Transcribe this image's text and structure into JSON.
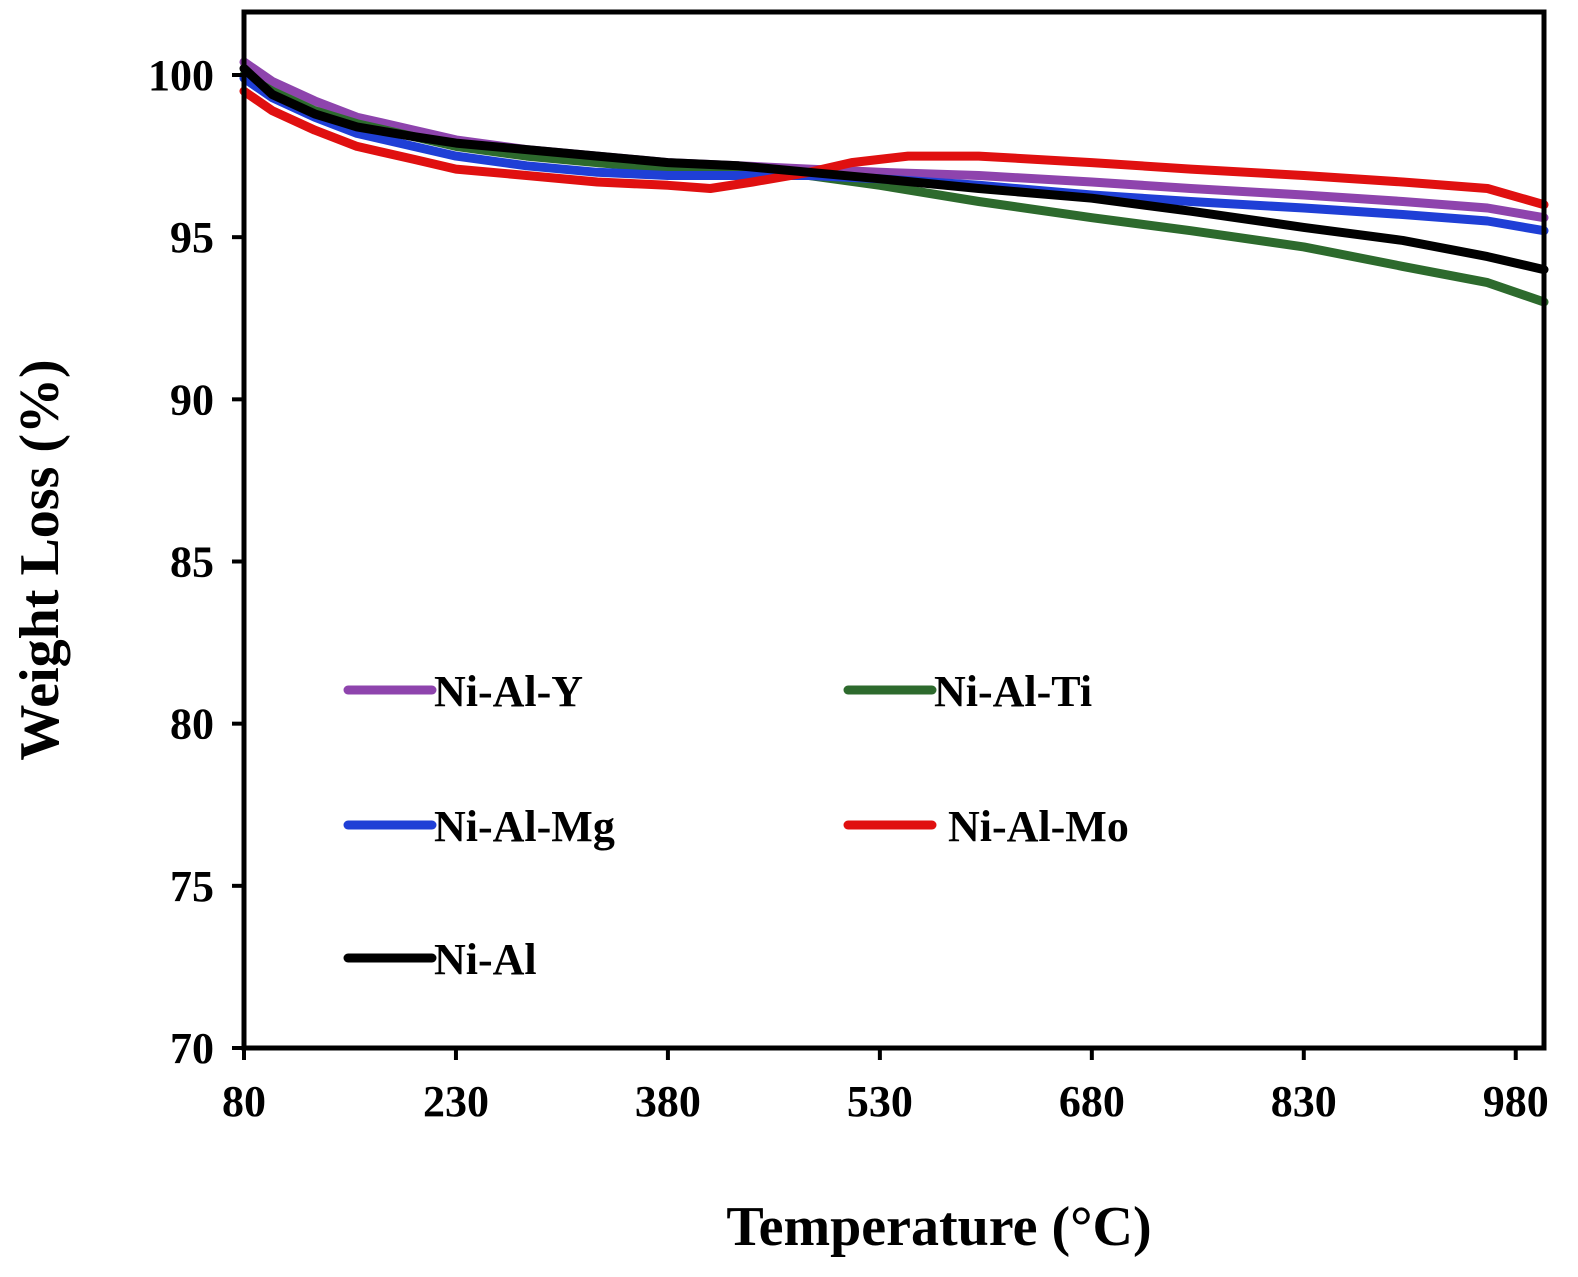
{
  "chart_data": {
    "type": "line",
    "title": "",
    "xlabel": "Temperature (°C)",
    "ylabel": "Weight Loss (%)",
    "xlim": [
      80,
      1000
    ],
    "ylim": [
      70,
      102
    ],
    "xticks": [
      80,
      230,
      380,
      530,
      680,
      830,
      980
    ],
    "yticks": [
      70,
      75,
      80,
      85,
      90,
      95,
      100
    ],
    "grid": false,
    "legend_position": "lower-left inside",
    "series": [
      {
        "name": "Ni-Al-Y",
        "color": "#8e44ad",
        "x": [
          80,
          100,
          130,
          160,
          200,
          230,
          280,
          330,
          380,
          430,
          480,
          530,
          600,
          680,
          750,
          830,
          900,
          960,
          1000
        ],
        "y": [
          100.4,
          99.8,
          99.2,
          98.7,
          98.3,
          98.0,
          97.7,
          97.5,
          97.3,
          97.2,
          97.1,
          97.0,
          96.9,
          96.7,
          96.5,
          96.3,
          96.1,
          95.9,
          95.6
        ]
      },
      {
        "name": "Ni-Al-Ti",
        "color": "#2d6a2d",
        "x": [
          80,
          100,
          130,
          160,
          200,
          230,
          280,
          330,
          380,
          430,
          480,
          530,
          600,
          680,
          750,
          830,
          900,
          960,
          1000
        ],
        "y": [
          100.0,
          99.5,
          98.9,
          98.5,
          98.1,
          97.8,
          97.5,
          97.3,
          97.1,
          97.0,
          96.9,
          96.6,
          96.1,
          95.6,
          95.2,
          94.7,
          94.1,
          93.6,
          93.0
        ]
      },
      {
        "name": "Ni-Al-Mg",
        "color": "#1f3fd6",
        "x": [
          80,
          100,
          130,
          160,
          200,
          230,
          280,
          330,
          380,
          430,
          480,
          530,
          600,
          680,
          750,
          830,
          900,
          960,
          1000
        ],
        "y": [
          99.9,
          99.3,
          98.7,
          98.2,
          97.8,
          97.5,
          97.2,
          97.0,
          96.9,
          96.9,
          96.9,
          96.8,
          96.6,
          96.3,
          96.1,
          95.9,
          95.7,
          95.5,
          95.2
        ]
      },
      {
        "name": "Ni-Al-Mo",
        "color": "#e01010",
        "x": [
          80,
          100,
          130,
          160,
          200,
          230,
          280,
          330,
          380,
          410,
          440,
          480,
          510,
          550,
          600,
          680,
          750,
          830,
          900,
          960,
          1000
        ],
        "y": [
          99.5,
          98.9,
          98.3,
          97.8,
          97.4,
          97.1,
          96.9,
          96.7,
          96.6,
          96.5,
          96.7,
          97.0,
          97.3,
          97.5,
          97.5,
          97.3,
          97.1,
          96.9,
          96.7,
          96.5,
          96.0
        ]
      },
      {
        "name": "Ni-Al",
        "color": "#000000",
        "x": [
          80,
          100,
          130,
          160,
          200,
          230,
          280,
          330,
          380,
          430,
          480,
          530,
          600,
          680,
          750,
          830,
          900,
          960,
          1000
        ],
        "y": [
          100.2,
          99.4,
          98.8,
          98.4,
          98.1,
          97.9,
          97.7,
          97.5,
          97.3,
          97.2,
          97.0,
          96.8,
          96.5,
          96.2,
          95.8,
          95.3,
          94.9,
          94.4,
          94.0
        ]
      }
    ],
    "legend": [
      {
        "label": "Ni-Al-Y",
        "color": "#8e44ad"
      },
      {
        "label": "Ni-Al-Ti",
        "color": "#2d6a2d"
      },
      {
        "label": "Ni-Al-Mg",
        "color": "#1f3fd6"
      },
      {
        "label": "Ni-Al-Mo",
        "color": "#e01010"
      },
      {
        "label": "Ni-Al",
        "color": "#000000"
      }
    ]
  }
}
